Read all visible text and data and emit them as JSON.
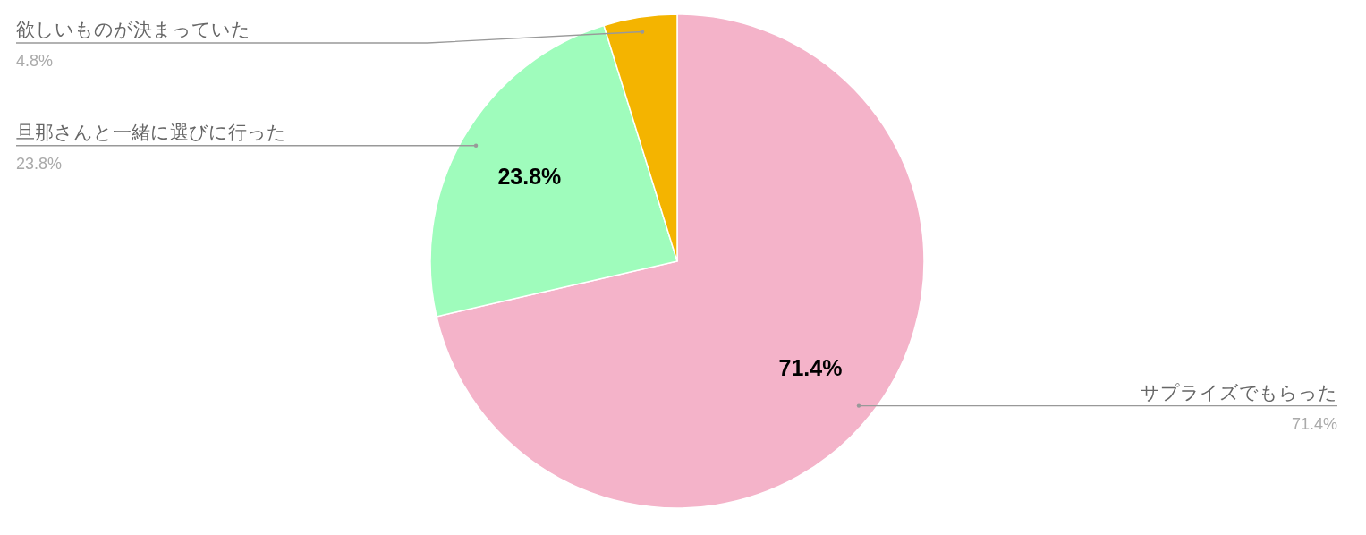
{
  "chart_data": {
    "type": "pie",
    "categories": [
      "サプライズでもらった",
      "旦那さんと一緒に選びに行った",
      "欲しいものが決まっていた"
    ],
    "values": [
      71.4,
      23.8,
      4.8
    ],
    "colors": [
      "#f4b3c9",
      "#9ffcbc",
      "#f4b400"
    ],
    "value_labels": [
      "71.4%",
      "23.8%",
      "4.8%"
    ],
    "annotations": [
      "71.4%",
      "23.8%"
    ]
  }
}
